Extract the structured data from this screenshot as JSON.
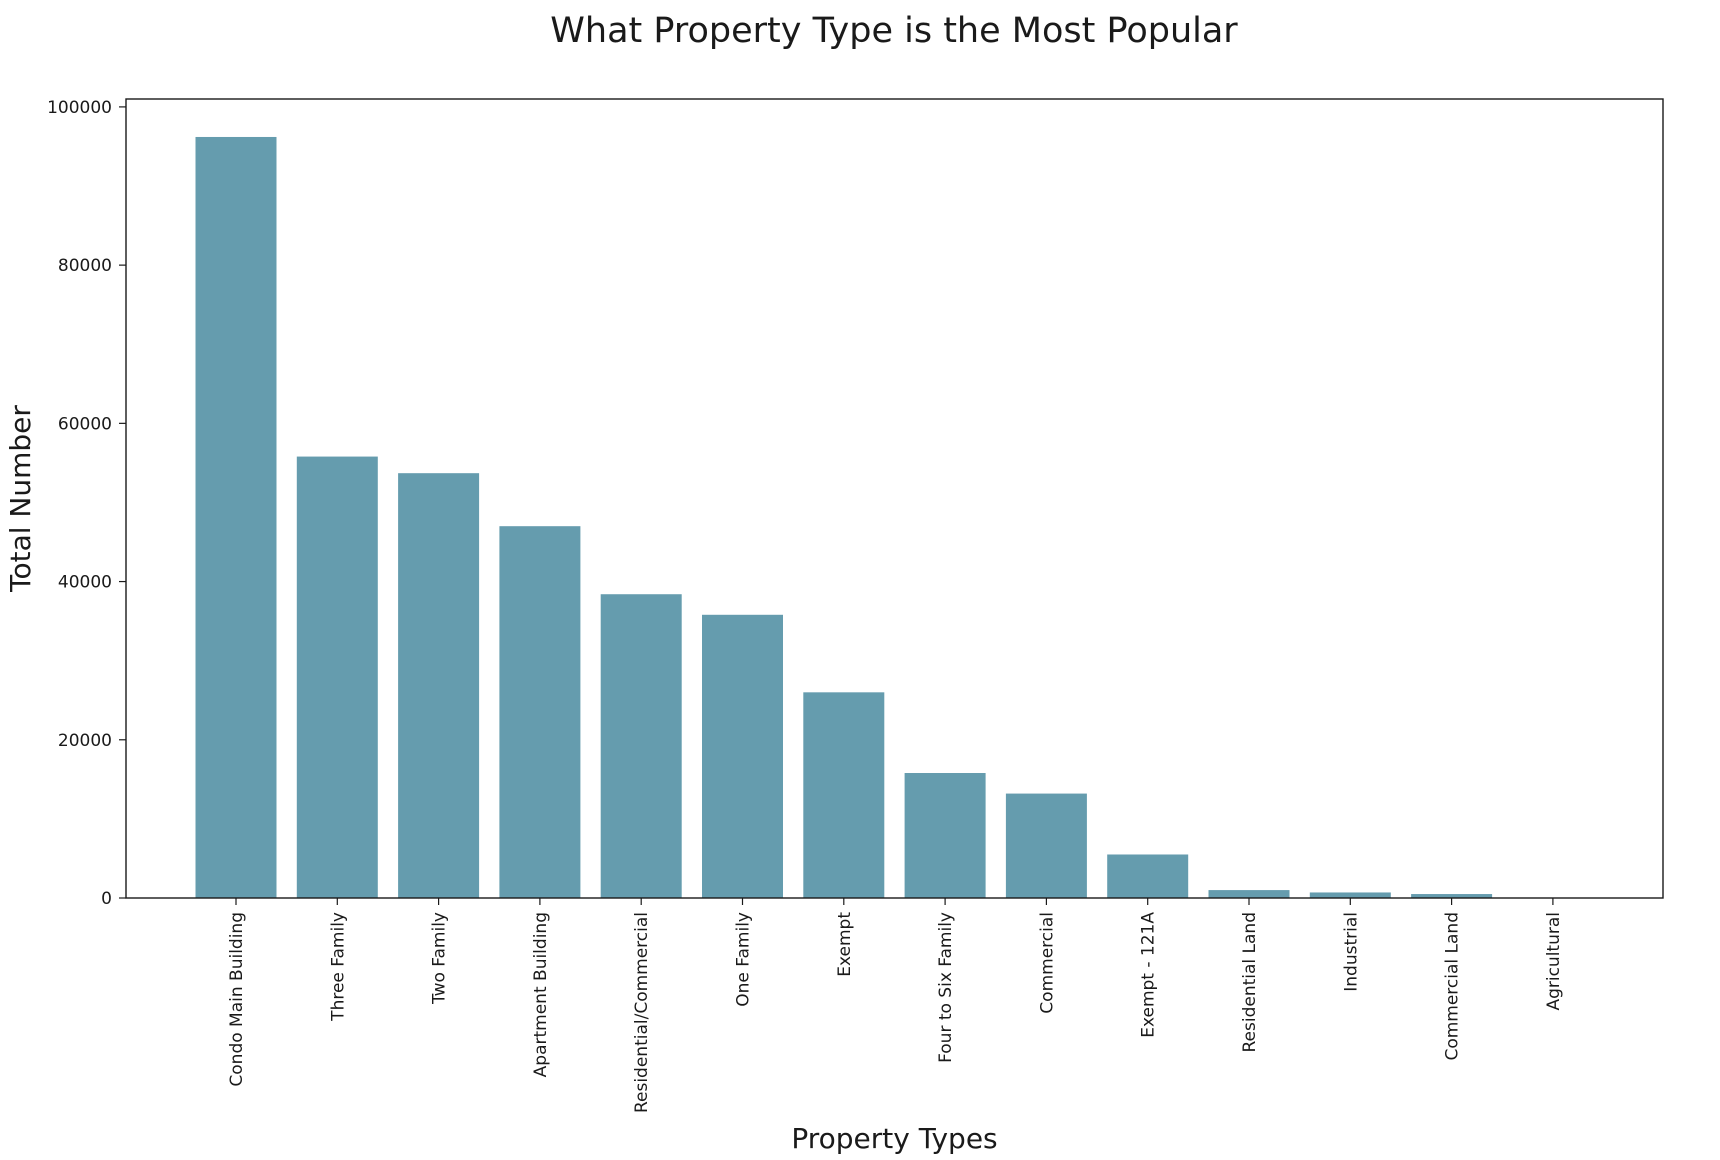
{
  "chart_data": {
    "type": "bar",
    "title": "What Property Type is the Most Popular",
    "xlabel": "Property Types",
    "ylabel": "Total Number",
    "categories": [
      "Condo Main Building",
      "Three Family",
      "Two Family",
      "Apartment Building",
      "Residential/Commercial",
      "One Family",
      "Exempt",
      "Four to Six Family",
      "Commercial",
      "Exempt - 121A",
      "Residential Land",
      "Industrial",
      "Commercial Land",
      "Agricultural"
    ],
    "values": [
      96200,
      55800,
      53700,
      47000,
      38400,
      35800,
      26000,
      15800,
      13200,
      5500,
      1000,
      700,
      500,
      50
    ],
    "ylim": [
      0,
      101000
    ],
    "yticks": [
      0,
      20000,
      40000,
      60000,
      80000,
      100000
    ],
    "ytick_labels": [
      "0",
      "20000",
      "40000",
      "60000",
      "80000",
      "100000"
    ],
    "grid": false,
    "bar_color": "#659cae",
    "axis_color": "#1a1a1a"
  }
}
